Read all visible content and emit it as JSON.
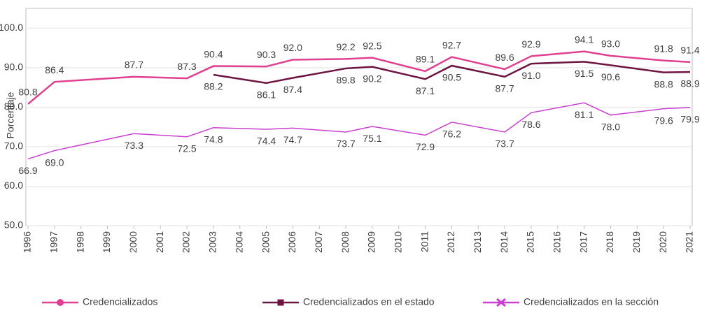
{
  "chart_data": {
    "type": "line",
    "y_label": "Porcentaje",
    "x": [
      1996,
      1997,
      2000,
      2002,
      2003,
      2005,
      2006,
      2008,
      2009,
      2011,
      2012,
      2014,
      2015,
      2017,
      2018,
      2020,
      2021
    ],
    "xlim": [
      1996,
      2021
    ],
    "xticks": [
      1996,
      1997,
      1998,
      1999,
      2000,
      2001,
      2002,
      2003,
      2004,
      2005,
      2006,
      2007,
      2008,
      2009,
      2010,
      2011,
      2012,
      2013,
      2014,
      2015,
      2016,
      2017,
      2018,
      2019,
      2020,
      2021
    ],
    "ylim": [
      50,
      105
    ],
    "yticks": [
      {
        "value": 50,
        "label": "50.0"
      },
      {
        "value": 60,
        "label": "60.0"
      },
      {
        "value": 70,
        "label": "70.0"
      },
      {
        "value": 80,
        "label": "80.0"
      },
      {
        "value": 90,
        "label": "90.0"
      },
      {
        "value": 100,
        "label": "100.0"
      }
    ],
    "grid": true,
    "legend": "bottom",
    "series": [
      {
        "name": "Credencializados",
        "color": "#e0408f",
        "marker": "circle",
        "values": [
          80.8,
          86.4,
          87.7,
          87.3,
          90.4,
          90.3,
          92,
          92.2,
          92.5,
          89.1,
          92.7,
          89.6,
          92.9,
          94.1,
          93,
          91.8,
          91.4
        ],
        "value_labels": [
          "80.8",
          "86.4",
          "87.7",
          "87.3",
          "90.4",
          "90.3",
          "92.0",
          "92.2",
          "92.5",
          "89.1",
          "92.7",
          "89.6",
          "92.9",
          "94.1",
          "93.0",
          "91.8",
          "91.4"
        ]
      },
      {
        "name": "Credencializados en el estado",
        "color": "#6d1440",
        "marker": "square",
        "values": [
          null,
          null,
          null,
          null,
          88.2,
          86.1,
          87.4,
          89.8,
          90.2,
          87.1,
          90.5,
          87.7,
          91,
          91.5,
          90.6,
          88.8,
          88.9
        ],
        "value_labels": [
          null,
          null,
          null,
          null,
          "88.2",
          "86.1",
          "87.4",
          "89.8",
          "90.2",
          "87.1",
          "90.5",
          "87.7",
          "91.0",
          "91.5",
          "90.6",
          "88.8",
          "88.9"
        ]
      },
      {
        "name": "Credencializados en la sección",
        "color": "#c93fd0",
        "marker": "x",
        "values": [
          66.9,
          69,
          73.3,
          72.5,
          74.8,
          74.4,
          74.7,
          73.7,
          75.1,
          72.9,
          76.2,
          73.7,
          78.6,
          81.1,
          78,
          79.6,
          79.9
        ],
        "value_labels": [
          "66.9",
          "69.0",
          "73.3",
          "72.5",
          "74.8",
          "74.4",
          "74.7",
          "73.7",
          "75.1",
          "72.9",
          "76.2",
          "73.7",
          "78.6",
          "81.1",
          "78.0",
          "79.6",
          "79.9"
        ]
      }
    ]
  }
}
